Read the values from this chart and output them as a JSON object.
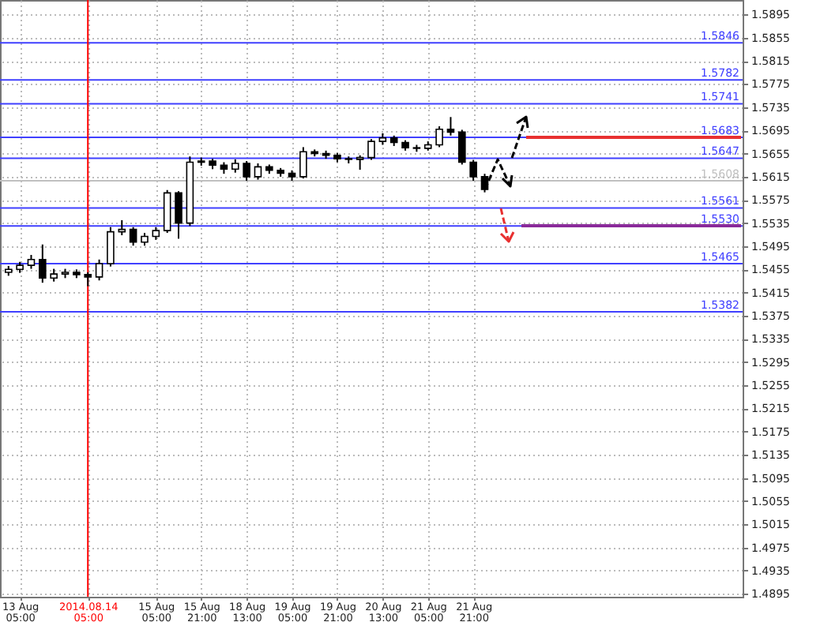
{
  "chart_data": {
    "type": "candlestick",
    "color": "#000000",
    "categories": [
      null,
      "13 Aug 05:00",
      null,
      null,
      null,
      null,
      null,
      "2014.08.14 05:00",
      null,
      null,
      null,
      null,
      null,
      "15 Aug 05:00",
      null,
      null,
      null,
      "15 Aug 21:00",
      null,
      null,
      null,
      "18 Aug 13:00",
      null,
      null,
      null,
      "19 Aug 05:00",
      null,
      null,
      null,
      "19 Aug 21:00",
      null,
      null,
      null,
      "20 Aug 13:00",
      null,
      null,
      null,
      "21 Aug 05:00",
      null,
      null,
      null,
      "21 Aug 21:00",
      null,
      null,
      null,
      null,
      null,
      null,
      null,
      null,
      null,
      null,
      null,
      null,
      null,
      null,
      null,
      null,
      null,
      null,
      null,
      null,
      null,
      null,
      null
    ],
    "ohlc": [
      [
        1.545,
        1.5461,
        1.5444,
        1.5455
      ],
      [
        1.5455,
        1.5468,
        1.5449,
        1.5462
      ],
      [
        1.5462,
        1.548,
        1.5456,
        1.5472
      ],
      [
        1.5472,
        1.5498,
        1.5432,
        1.544
      ],
      [
        1.544,
        1.5456,
        1.5434,
        1.5447
      ],
      [
        1.5447,
        1.5456,
        1.544,
        1.545
      ],
      [
        1.545,
        1.5455,
        1.544,
        1.5446
      ],
      [
        1.5446,
        1.545,
        1.5426,
        1.5442
      ],
      [
        1.5442,
        1.5472,
        1.5436,
        1.5465
      ],
      [
        1.5465,
        1.5528,
        1.546,
        1.552
      ],
      [
        1.552,
        1.554,
        1.5514,
        1.5524
      ],
      [
        1.5524,
        1.5528,
        1.5496,
        1.5502
      ],
      [
        1.5502,
        1.5518,
        1.5496,
        1.5512
      ],
      [
        1.5512,
        1.5528,
        1.5506,
        1.5522
      ],
      [
        1.5522,
        1.5592,
        1.5518,
        1.5587
      ],
      [
        1.5587,
        1.559,
        1.5508,
        1.5535
      ],
      [
        1.5535,
        1.565,
        1.553,
        1.564
      ],
      [
        1.564,
        1.5648,
        1.5634,
        1.5642
      ],
      [
        1.5642,
        1.5646,
        1.5628,
        1.5635
      ],
      [
        1.5635,
        1.564,
        1.562,
        1.5628
      ],
      [
        1.5628,
        1.5645,
        1.5622,
        1.5638
      ],
      [
        1.5638,
        1.5642,
        1.5608,
        1.5615
      ],
      [
        1.5615,
        1.5638,
        1.561,
        1.5632
      ],
      [
        1.5632,
        1.5636,
        1.562,
        1.5626
      ],
      [
        1.5626,
        1.563,
        1.5615,
        1.5621
      ],
      [
        1.5621,
        1.5626,
        1.5608,
        1.5615
      ],
      [
        1.5615,
        1.5666,
        1.5612,
        1.5658
      ],
      [
        1.5658,
        1.5662,
        1.565,
        1.5655
      ],
      [
        1.5655,
        1.566,
        1.5646,
        1.5652
      ],
      [
        1.5652,
        1.5656,
        1.564,
        1.5646
      ],
      [
        1.5646,
        1.565,
        1.5638,
        1.5645
      ],
      [
        1.5645,
        1.5652,
        1.5627,
        1.5648
      ],
      [
        1.5648,
        1.568,
        1.5644,
        1.5676
      ],
      [
        1.5676,
        1.569,
        1.567,
        1.5682
      ],
      [
        1.5682,
        1.5686,
        1.5668,
        1.5674
      ],
      [
        1.5674,
        1.5678,
        1.566,
        1.5665
      ],
      [
        1.5665,
        1.567,
        1.5658,
        1.5664
      ],
      [
        1.5664,
        1.5676,
        1.566,
        1.567
      ],
      [
        1.567,
        1.5702,
        1.5666,
        1.5697
      ],
      [
        1.5697,
        1.5718,
        1.5686,
        1.5692
      ],
      [
        1.5692,
        1.5696,
        1.5636,
        1.564
      ],
      [
        1.564,
        1.5644,
        1.5608,
        1.5615
      ],
      [
        1.5615,
        1.562,
        1.5588,
        1.5593
      ],
      null,
      null,
      null,
      null,
      null,
      null,
      null,
      null,
      null,
      null,
      null,
      null,
      null,
      null,
      null,
      null,
      null,
      null,
      null,
      null,
      null,
      null
    ],
    "ylim": [
      1.489,
      1.592
    ],
    "yticks": [
      1.4895,
      1.4935,
      1.4975,
      1.5015,
      1.5055,
      1.5095,
      1.5135,
      1.5175,
      1.5215,
      1.5255,
      1.5295,
      1.5335,
      1.5375,
      1.5415,
      1.5455,
      1.5495,
      1.5535,
      1.5575,
      1.5615,
      1.5655,
      1.5695,
      1.5735,
      1.5775,
      1.5815,
      1.5855,
      1.5895
    ],
    "grid": true,
    "ref_lines": [
      {
        "axis": "y",
        "value": 1.5846,
        "label": "1.5846",
        "color": "#4040ff"
      },
      {
        "axis": "y",
        "value": 1.5782,
        "label": "1.5782",
        "color": "#4040ff"
      },
      {
        "axis": "y",
        "value": 1.5741,
        "label": "1.5741",
        "color": "#4040ff"
      },
      {
        "axis": "y",
        "value": 1.5683,
        "label": "1.5683",
        "color": "#4040ff"
      },
      {
        "axis": "y",
        "value": 1.5647,
        "label": "1.5647",
        "color": "#4040ff"
      },
      {
        "axis": "y",
        "value": 1.5608,
        "label": "1.5608",
        "color": "#c0c0c0"
      },
      {
        "axis": "y",
        "value": 1.5561,
        "label": "1.5561",
        "color": "#4040ff"
      },
      {
        "axis": "y",
        "value": 1.553,
        "label": "1.5530",
        "color": "#4040ff"
      },
      {
        "axis": "y",
        "value": 1.5465,
        "label": "1.5465",
        "color": "#4040ff"
      },
      {
        "axis": "y",
        "value": 1.5382,
        "label": "1.5382",
        "color": "#4040ff"
      },
      {
        "axis": "x",
        "value": "2014.08.14 05:00",
        "color": "#ff0000"
      }
    ]
  }
}
